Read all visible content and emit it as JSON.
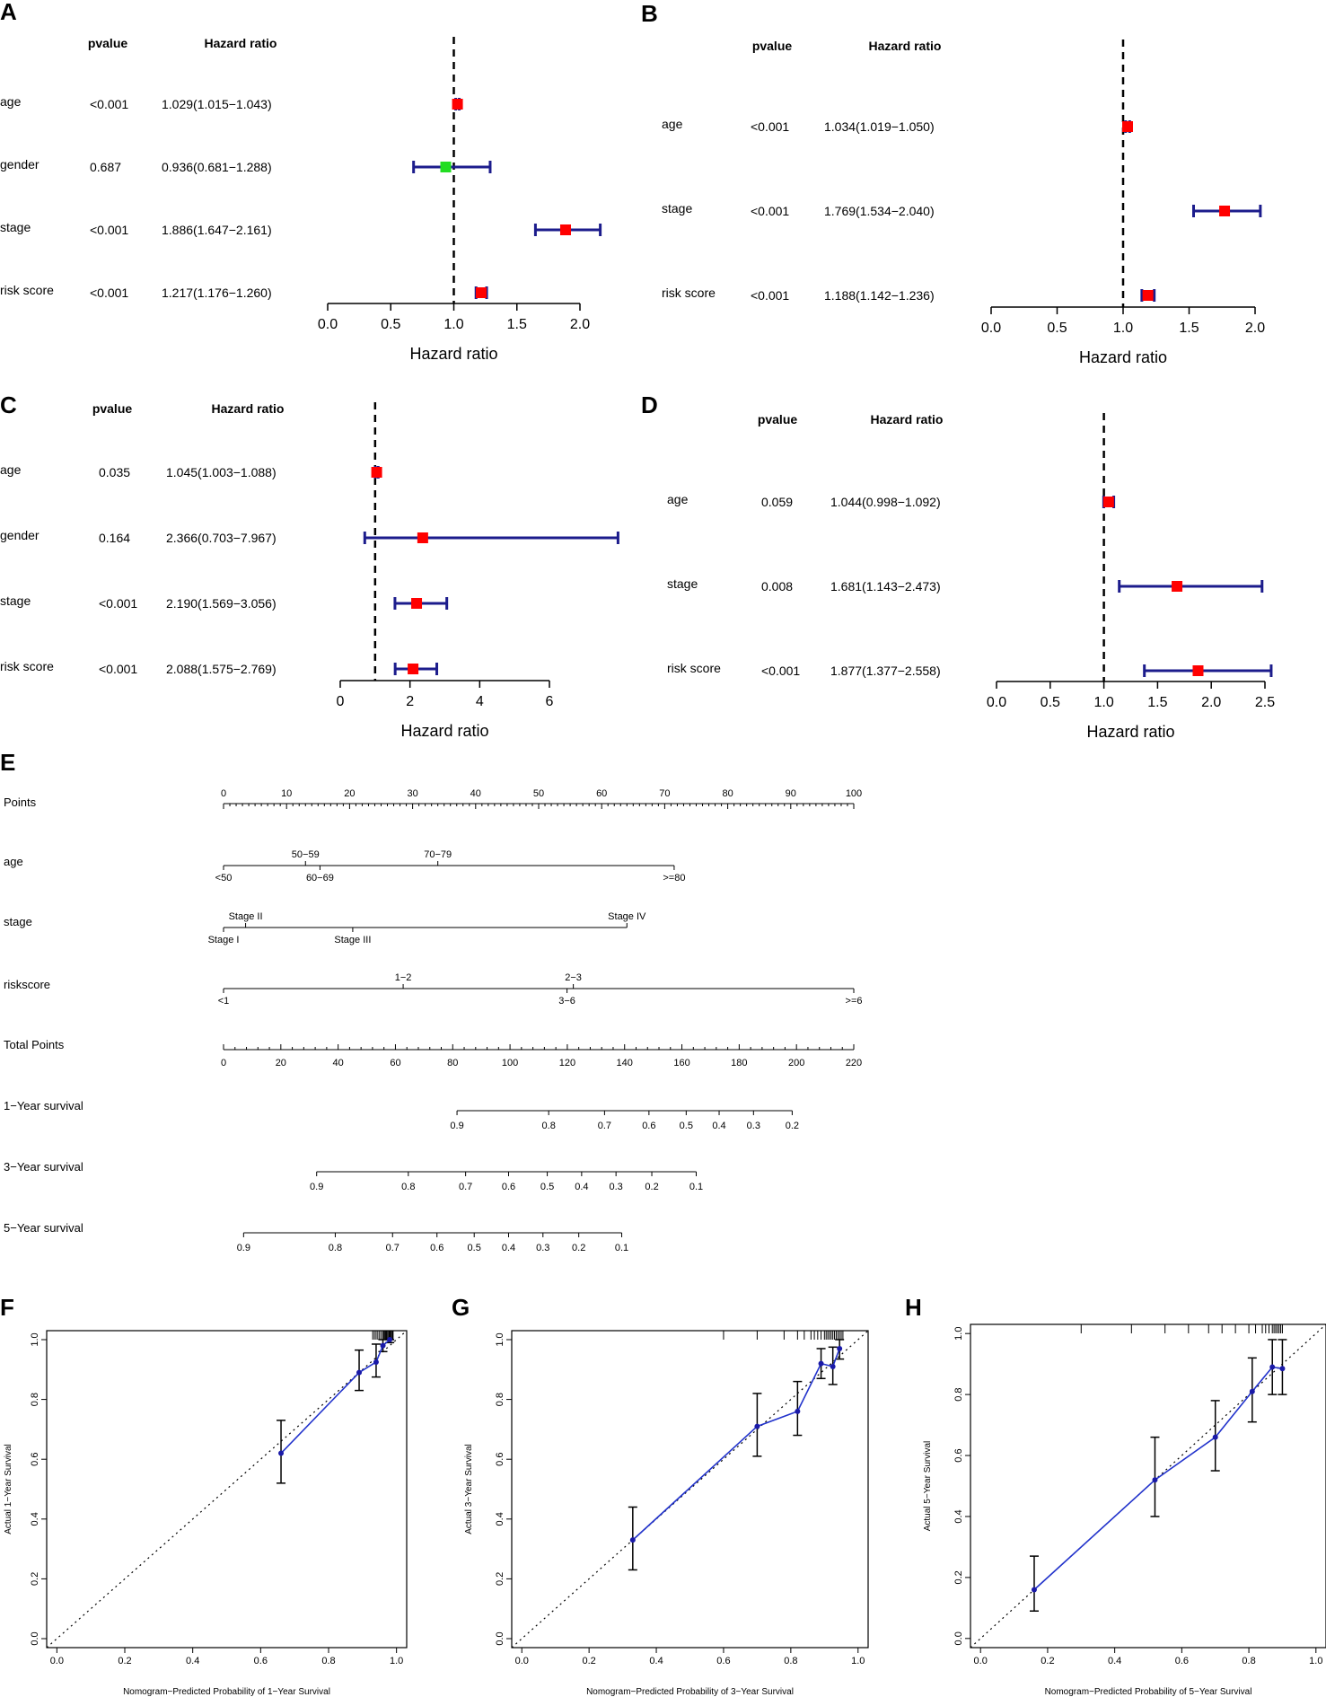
{
  "colors": {
    "ci": "#1c1c8c",
    "box_sig": "#ff0000",
    "box_nonsig": "#22dd22",
    "calib_line": "#2233cc",
    "calib_point": "#1a1aa8",
    "black": "#000000"
  },
  "chart_data": [
    {
      "panel": "A",
      "type": "forest",
      "pvalue_header": "pvalue",
      "hr_header": "Hazard ratio",
      "xlabel": "Hazard ratio",
      "xlim": [
        0,
        2
      ],
      "ref": 1,
      "ticks": [
        0,
        0.5,
        1,
        1.5,
        2
      ],
      "tick_labels": [
        "0.0",
        "0.5",
        "1.0",
        "1.5",
        "2.0"
      ],
      "rows": [
        {
          "name": "age",
          "pvalue": "<0.001",
          "hr_text": "1.029(1.015−1.043)",
          "hr": 1.029,
          "lo": 1.015,
          "hi": 1.043,
          "sig": true
        },
        {
          "name": "gender",
          "pvalue": "0.687",
          "hr_text": "0.936(0.681−1.288)",
          "hr": 0.936,
          "lo": 0.681,
          "hi": 1.288,
          "sig": false
        },
        {
          "name": "stage",
          "pvalue": "<0.001",
          "hr_text": "1.886(1.647−2.161)",
          "hr": 1.886,
          "lo": 1.647,
          "hi": 2.161,
          "sig": true
        },
        {
          "name": "risk score",
          "pvalue": "<0.001",
          "hr_text": "1.217(1.176−1.260)",
          "hr": 1.217,
          "lo": 1.176,
          "hi": 1.26,
          "sig": true
        }
      ]
    },
    {
      "panel": "B",
      "type": "forest",
      "pvalue_header": "pvalue",
      "hr_header": "Hazard ratio",
      "xlabel": "Hazard ratio",
      "xlim": [
        0,
        2
      ],
      "ref": 1,
      "ticks": [
        0,
        0.5,
        1,
        1.5,
        2
      ],
      "tick_labels": [
        "0.0",
        "0.5",
        "1.0",
        "1.5",
        "2.0"
      ],
      "rows": [
        {
          "name": "age",
          "pvalue": "<0.001",
          "hr_text": "1.034(1.019−1.050)",
          "hr": 1.034,
          "lo": 1.019,
          "hi": 1.05,
          "sig": true
        },
        {
          "name": "stage",
          "pvalue": "<0.001",
          "hr_text": "1.769(1.534−2.040)",
          "hr": 1.769,
          "lo": 1.534,
          "hi": 2.04,
          "sig": true
        },
        {
          "name": "risk score",
          "pvalue": "<0.001",
          "hr_text": "1.188(1.142−1.236)",
          "hr": 1.188,
          "lo": 1.142,
          "hi": 1.236,
          "sig": true
        }
      ]
    },
    {
      "panel": "C",
      "type": "forest",
      "pvalue_header": "pvalue",
      "hr_header": "Hazard ratio",
      "xlabel": "Hazard ratio",
      "xlim": [
        0,
        6
      ],
      "ref": 1,
      "ticks": [
        0,
        2,
        4,
        6
      ],
      "tick_labels": [
        "0",
        "2",
        "4",
        "6"
      ],
      "rows": [
        {
          "name": "age",
          "pvalue": "0.035",
          "hr_text": "1.045(1.003−1.088)",
          "hr": 1.045,
          "lo": 1.003,
          "hi": 1.088,
          "sig": true
        },
        {
          "name": "gender",
          "pvalue": "0.164",
          "hr_text": "2.366(0.703−7.967)",
          "hr": 2.366,
          "lo": 0.703,
          "hi": 7.967,
          "sig": true
        },
        {
          "name": "stage",
          "pvalue": "<0.001",
          "hr_text": "2.190(1.569−3.056)",
          "hr": 2.19,
          "lo": 1.569,
          "hi": 3.056,
          "sig": true
        },
        {
          "name": "risk score",
          "pvalue": "<0.001",
          "hr_text": "2.088(1.575−2.769)",
          "hr": 2.088,
          "lo": 1.575,
          "hi": 2.769,
          "sig": true
        }
      ]
    },
    {
      "panel": "D",
      "type": "forest",
      "pvalue_header": "pvalue",
      "hr_header": "Hazard ratio",
      "xlabel": "Hazard ratio",
      "xlim": [
        0,
        2.5
      ],
      "ref": 1,
      "ticks": [
        0,
        0.5,
        1,
        1.5,
        2,
        2.5
      ],
      "tick_labels": [
        "0.0",
        "0.5",
        "1.0",
        "1.5",
        "2.0",
        "2.5"
      ],
      "rows": [
        {
          "name": "age",
          "pvalue": "0.059",
          "hr_text": "1.044(0.998−1.092)",
          "hr": 1.044,
          "lo": 0.998,
          "hi": 1.092,
          "sig": true
        },
        {
          "name": "stage",
          "pvalue": "0.008",
          "hr_text": "1.681(1.143−2.473)",
          "hr": 1.681,
          "lo": 1.143,
          "hi": 2.473,
          "sig": true
        },
        {
          "name": "risk score",
          "pvalue": "<0.001",
          "hr_text": "1.877(1.377−2.558)",
          "hr": 1.877,
          "lo": 1.377,
          "hi": 2.558,
          "sig": true
        }
      ]
    },
    {
      "panel": "E",
      "type": "nomogram",
      "rows": [
        {
          "label": "Points",
          "kind": "scale",
          "min": 0,
          "max": 100,
          "minor": 1,
          "major": 10,
          "labels": [
            0,
            10,
            20,
            30,
            40,
            50,
            60,
            70,
            80,
            90,
            100
          ],
          "label_pos": "above"
        },
        {
          "label": "age",
          "kind": "var",
          "span": [
            0,
            71.5
          ],
          "marks": [
            {
              "text": "<50",
              "pt": 0,
              "pos": "below"
            },
            {
              "text": "50−59",
              "pt": 13,
              "pos": "above"
            },
            {
              "text": "60−69",
              "pt": 15.3,
              "pos": "below"
            },
            {
              "text": "70−79",
              "pt": 34,
              "pos": "above"
            },
            {
              "text": ">=80",
              "pt": 71.5,
              "pos": "below"
            }
          ]
        },
        {
          "label": "stage",
          "kind": "var",
          "span": [
            0,
            64
          ],
          "marks": [
            {
              "text": "Stage I",
              "pt": 0,
              "pos": "below"
            },
            {
              "text": "Stage II",
              "pt": 3.5,
              "pos": "above"
            },
            {
              "text": "Stage III",
              "pt": 20.5,
              "pos": "below"
            },
            {
              "text": "Stage IV",
              "pt": 64,
              "pos": "above"
            }
          ]
        },
        {
          "label": "riskscore",
          "kind": "var",
          "span": [
            0,
            100
          ],
          "marks": [
            {
              "text": "<1",
              "pt": 0,
              "pos": "below"
            },
            {
              "text": "1−2",
              "pt": 28.5,
              "pos": "above"
            },
            {
              "text": "2−3",
              "pt": 55.5,
              "pos": "above"
            },
            {
              "text": "3−6",
              "pt": 54.5,
              "pos": "below"
            },
            {
              "text": ">=6",
              "pt": 100,
              "pos": "below"
            }
          ]
        },
        {
          "label": "Total Points",
          "kind": "scale",
          "min": 0,
          "max": 220,
          "minor": 4,
          "major": 20,
          "labels": [
            0,
            20,
            40,
            60,
            80,
            100,
            120,
            140,
            160,
            180,
            200,
            220
          ],
          "label_pos": "below"
        },
        {
          "label": "1−Year survival",
          "kind": "prob",
          "ticks": [
            {
              "text": "0.9",
              "tp": 81.5
            },
            {
              "text": "0.8",
              "tp": 113.5
            },
            {
              "text": "0.7",
              "tp": 133.0
            },
            {
              "text": "0.6",
              "tp": 148.5
            },
            {
              "text": "0.5",
              "tp": 161.5
            },
            {
              "text": "0.4",
              "tp": 173.0
            },
            {
              "text": "0.3",
              "tp": 185.0
            },
            {
              "text": "0.2",
              "tp": 198.5
            }
          ]
        },
        {
          "label": "3−Year survival",
          "kind": "prob",
          "ticks": [
            {
              "text": "0.9",
              "tp": 32.5
            },
            {
              "text": "0.8",
              "tp": 64.5
            },
            {
              "text": "0.7",
              "tp": 84.5
            },
            {
              "text": "0.6",
              "tp": 99.5
            },
            {
              "text": "0.5",
              "tp": 113.0
            },
            {
              "text": "0.4",
              "tp": 125.0
            },
            {
              "text": "0.3",
              "tp": 137.0
            },
            {
              "text": "0.2",
              "tp": 149.5
            },
            {
              "text": "0.1",
              "tp": 165.0
            }
          ]
        },
        {
          "label": "5−Year survival",
          "kind": "prob",
          "ticks": [
            {
              "text": "0.9",
              "tp": 7.0
            },
            {
              "text": "0.8",
              "tp": 39.0
            },
            {
              "text": "0.7",
              "tp": 59.0
            },
            {
              "text": "0.6",
              "tp": 74.5
            },
            {
              "text": "0.5",
              "tp": 87.5
            },
            {
              "text": "0.4",
              "tp": 99.5
            },
            {
              "text": "0.3",
              "tp": 111.5
            },
            {
              "text": "0.2",
              "tp": 124.0
            },
            {
              "text": "0.1",
              "tp": 139.0
            }
          ]
        }
      ]
    },
    {
      "panel": "F",
      "type": "calibration",
      "xlabel": "Nomogram−Predicted Probability of 1−Year Survival",
      "ylabel": "Actual 1−Year Survival",
      "xlim": [
        -0.03,
        1.03
      ],
      "ylim": [
        -0.03,
        1.03
      ],
      "xticks": [
        0,
        0.2,
        0.4,
        0.6,
        0.8,
        1
      ],
      "xtick_labels": [
        "0.0",
        "0.2",
        "0.4",
        "0.6",
        "0.8",
        "1.0"
      ],
      "yticks": [
        0,
        0.2,
        0.4,
        0.6,
        0.8,
        1
      ],
      "ytick_labels": [
        "0.0",
        "0.2",
        "0.4",
        "0.6",
        "0.8",
        "1.0"
      ],
      "x": [
        0.66,
        0.89,
        0.94,
        0.96,
        0.98
      ],
      "y": [
        0.62,
        0.89,
        0.925,
        0.98,
        1.0
      ],
      "err_lo": [
        0.52,
        0.83,
        0.875,
        0.96,
        0.99
      ],
      "err_hi": [
        0.73,
        0.965,
        0.985,
        1.0,
        1.0
      ],
      "rug": [
        0.93,
        0.935,
        0.94,
        0.945,
        0.95,
        0.955,
        0.96,
        0.962,
        0.965,
        0.968,
        0.97,
        0.972,
        0.975,
        0.978,
        0.98,
        0.982,
        0.985,
        0.988,
        0.99
      ]
    },
    {
      "panel": "G",
      "type": "calibration",
      "xlabel": "Nomogram−Predicted Probability of 3−Year Survival",
      "ylabel": "Actual 3−Year Survival",
      "xlim": [
        -0.03,
        1.03
      ],
      "ylim": [
        -0.03,
        1.03
      ],
      "xticks": [
        0,
        0.2,
        0.4,
        0.6,
        0.8,
        1
      ],
      "xtick_labels": [
        "0.0",
        "0.2",
        "0.4",
        "0.6",
        "0.8",
        "1.0"
      ],
      "yticks": [
        0,
        0.2,
        0.4,
        0.6,
        0.8,
        1
      ],
      "ytick_labels": [
        "0.0",
        "0.2",
        "0.4",
        "0.6",
        "0.8",
        "1.0"
      ],
      "x": [
        0.33,
        0.7,
        0.82,
        0.89,
        0.925,
        0.945
      ],
      "y": [
        0.33,
        0.71,
        0.76,
        0.92,
        0.91,
        0.97
      ],
      "err_lo": [
        0.23,
        0.61,
        0.68,
        0.87,
        0.85,
        0.935
      ],
      "err_hi": [
        0.44,
        0.82,
        0.86,
        0.97,
        0.975,
        1.0
      ],
      "rug": [
        0.6,
        0.7,
        0.78,
        0.82,
        0.84,
        0.86,
        0.87,
        0.88,
        0.89,
        0.9,
        0.905,
        0.91,
        0.915,
        0.92,
        0.925,
        0.93,
        0.935,
        0.94,
        0.945,
        0.95,
        0.955
      ]
    },
    {
      "panel": "H",
      "type": "calibration",
      "xlabel": "Nomogram−Predicted Probability of 5−Year Survival",
      "ylabel": "Actual 5−Year Survival",
      "xlim": [
        -0.03,
        1.03
      ],
      "ylim": [
        -0.03,
        1.03
      ],
      "xticks": [
        0,
        0.2,
        0.4,
        0.6,
        0.8,
        1
      ],
      "xtick_labels": [
        "0.0",
        "0.2",
        "0.4",
        "0.6",
        "0.8",
        "1.0"
      ],
      "yticks": [
        0,
        0.2,
        0.4,
        0.6,
        0.8,
        1
      ],
      "ytick_labels": [
        "0.0",
        "0.2",
        "0.4",
        "0.6",
        "0.8",
        "1.0"
      ],
      "x": [
        0.16,
        0.52,
        0.7,
        0.81,
        0.87,
        0.9
      ],
      "y": [
        0.16,
        0.52,
        0.66,
        0.81,
        0.89,
        0.885
      ],
      "err_lo": [
        0.09,
        0.4,
        0.55,
        0.71,
        0.8,
        0.8
      ],
      "err_hi": [
        0.27,
        0.66,
        0.78,
        0.92,
        0.98,
        0.98
      ],
      "rug": [
        0.3,
        0.45,
        0.55,
        0.62,
        0.68,
        0.72,
        0.76,
        0.8,
        0.82,
        0.84,
        0.85,
        0.86,
        0.87,
        0.875,
        0.88,
        0.885,
        0.89,
        0.895,
        0.9
      ]
    }
  ]
}
